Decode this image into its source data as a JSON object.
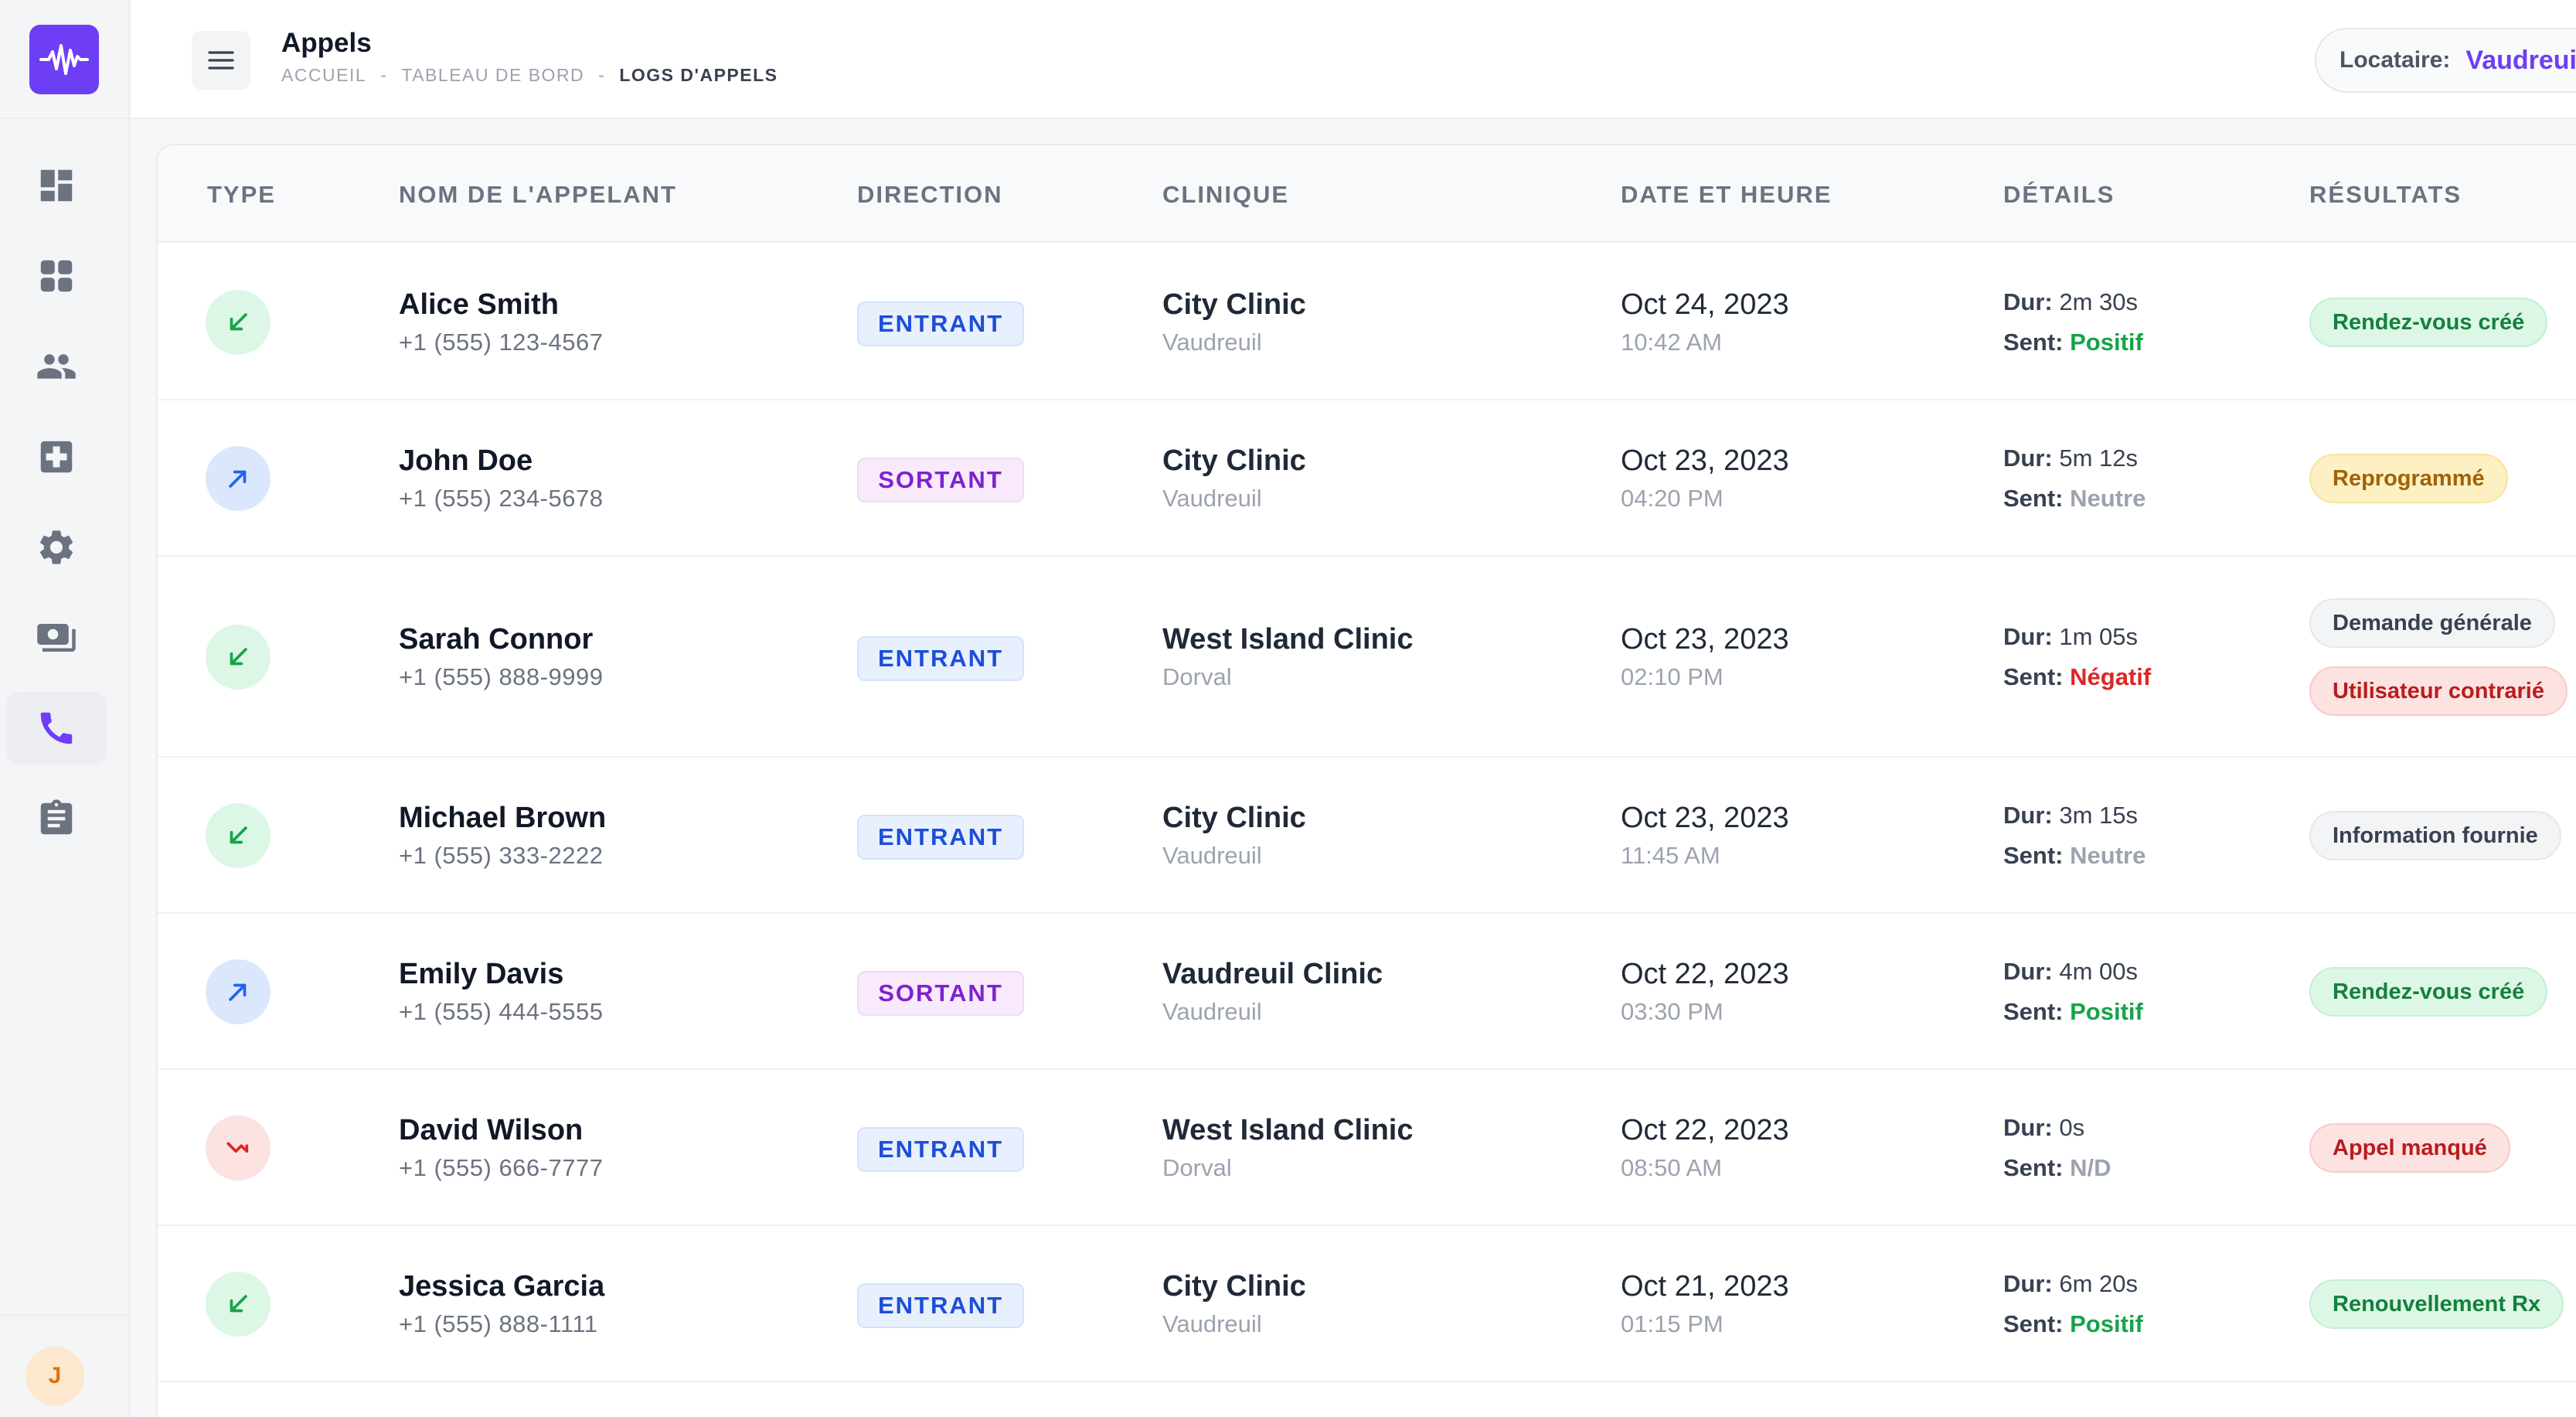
{
  "header": {
    "title": "Appels",
    "breadcrumb": [
      "ACCUEIL",
      "TABLEAU DE BORD",
      "LOGS D'APPELS"
    ],
    "breadcrumb_sep": "-",
    "tenant_label": "Locataire:",
    "tenant_value": "Vaudreuil"
  },
  "sidebar": {
    "items": [
      "dashboard-icon",
      "grid-icon",
      "users-icon",
      "medical-cross-icon",
      "gear-icon",
      "billing-icon",
      "phone-icon",
      "clipboard-icon"
    ],
    "active": "phone-icon",
    "avatar": "J"
  },
  "colors": {
    "accent": "#6d3ef5",
    "positive": "#16a34a",
    "negative": "#dc2626",
    "neutral": "#9ca3af"
  },
  "table": {
    "columns": [
      "TYPE",
      "NOM DE L'APPELANT",
      "DIRECTION",
      "CLINIQUE",
      "DATE ET HEURE",
      "DÉTAILS",
      "RÉSULTATS"
    ],
    "dur_label": "Dur:",
    "sent_label": "Sent:",
    "rows": [
      {
        "type": "incoming",
        "name": "Alice Smith",
        "phone": "+1 (555) 123-4567",
        "direction": "ENTRANT",
        "clinic": "City Clinic",
        "city": "Vaudreuil",
        "date": "Oct 24, 2023",
        "time": "10:42 AM",
        "dur": "2m 30s",
        "sent": "Positif",
        "sent_class": "positif",
        "results": [
          {
            "label": "Rendez-vous créé",
            "color": "green"
          }
        ]
      },
      {
        "type": "outgoing",
        "name": "John Doe",
        "phone": "+1 (555) 234-5678",
        "direction": "SORTANT",
        "clinic": "City Clinic",
        "city": "Vaudreuil",
        "date": "Oct 23, 2023",
        "time": "04:20 PM",
        "dur": "5m 12s",
        "sent": "Neutre",
        "sent_class": "neutre",
        "results": [
          {
            "label": "Reprogrammé",
            "color": "yellow"
          }
        ]
      },
      {
        "type": "incoming",
        "name": "Sarah Connor",
        "phone": "+1 (555) 888-9999",
        "direction": "ENTRANT",
        "clinic": "West Island Clinic",
        "city": "Dorval",
        "date": "Oct 23, 2023",
        "time": "02:10 PM",
        "dur": "1m 05s",
        "sent": "Négatif",
        "sent_class": "negatif",
        "results": [
          {
            "label": "Demande générale",
            "color": "gray"
          },
          {
            "label": "Utilisateur contrarié",
            "color": "red"
          }
        ]
      },
      {
        "type": "incoming",
        "name": "Michael Brown",
        "phone": "+1 (555) 333-2222",
        "direction": "ENTRANT",
        "clinic": "City Clinic",
        "city": "Vaudreuil",
        "date": "Oct 23, 2023",
        "time": "11:45 AM",
        "dur": "3m 15s",
        "sent": "Neutre",
        "sent_class": "neutre",
        "results": [
          {
            "label": "Information fournie",
            "color": "gray"
          }
        ]
      },
      {
        "type": "outgoing",
        "name": "Emily Davis",
        "phone": "+1 (555) 444-5555",
        "direction": "SORTANT",
        "clinic": "Vaudreuil Clinic",
        "city": "Vaudreuil",
        "date": "Oct 22, 2023",
        "time": "03:30 PM",
        "dur": "4m 00s",
        "sent": "Positif",
        "sent_class": "positif",
        "results": [
          {
            "label": "Rendez-vous créé",
            "color": "green"
          }
        ]
      },
      {
        "type": "missed",
        "name": "David Wilson",
        "phone": "+1 (555) 666-7777",
        "direction": "ENTRANT",
        "clinic": "West Island Clinic",
        "city": "Dorval",
        "date": "Oct 22, 2023",
        "time": "08:50 AM",
        "dur": "0s",
        "sent": "N/D",
        "sent_class": "na",
        "results": [
          {
            "label": "Appel manqué",
            "color": "red"
          }
        ]
      },
      {
        "type": "incoming",
        "name": "Jessica Garcia",
        "phone": "+1 (555) 888-1111",
        "direction": "ENTRANT",
        "clinic": "City Clinic",
        "city": "Vaudreuil",
        "date": "Oct 21, 2023",
        "time": "01:15 PM",
        "dur": "6m 20s",
        "sent": "Positif",
        "sent_class": "positif",
        "results": [
          {
            "label": "Renouvellement Rx",
            "color": "green"
          }
        ]
      }
    ]
  }
}
